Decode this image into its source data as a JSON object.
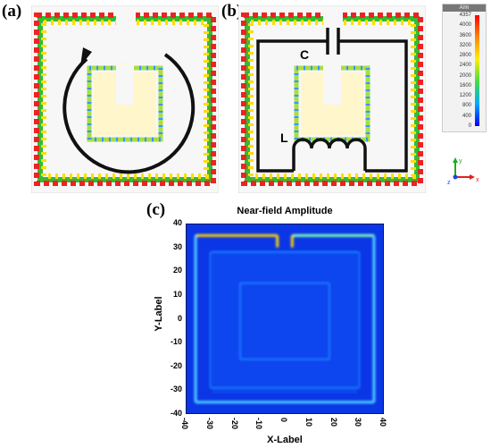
{
  "panels": {
    "a": {
      "label": "(a)"
    },
    "b": {
      "label": "(b)",
      "capacitor_label": "C",
      "inductor_label": "L"
    },
    "c": {
      "label": "(c)"
    }
  },
  "colorbar": {
    "unit": "A/m",
    "ticks": [
      "4357",
      "4000",
      "3600",
      "3200",
      "2800",
      "2400",
      "2000",
      "1600",
      "1200",
      "800",
      "400",
      "0"
    ],
    "colors": [
      "#ff0000",
      "#ff8800",
      "#ffee00",
      "#44dd44",
      "#00aaff",
      "#0000ff"
    ]
  },
  "axes_triad": {
    "y": "y",
    "z": "z",
    "x": "x"
  },
  "chart_data": {
    "type": "heatmap",
    "title": "Near-field Amplitude",
    "xlabel": "X-Label",
    "ylabel": "Y-Label",
    "xlim": [
      -40,
      40
    ],
    "ylim": [
      -40,
      40
    ],
    "xticks": [
      "-40",
      "-30",
      "-20",
      "-10",
      "0",
      "10",
      "20",
      "30",
      "40"
    ],
    "yticks": [
      "40",
      "30",
      "20",
      "10",
      "0",
      "-10",
      "-20",
      "-30",
      "-40"
    ],
    "colors": {
      "background": "#0a36e6",
      "mid": "#1f7cff",
      "high": "#ffd200"
    }
  }
}
